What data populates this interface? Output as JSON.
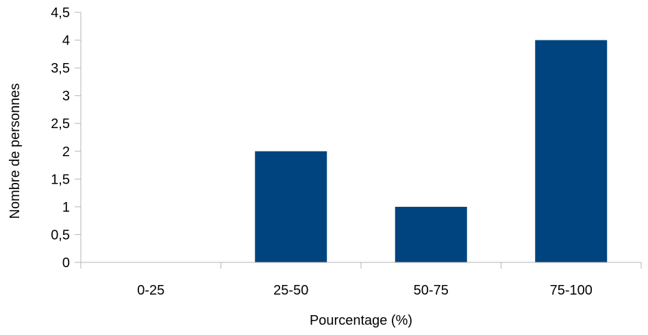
{
  "chart_data": {
    "type": "bar",
    "title": "",
    "xlabel": "Pourcentage (%)",
    "ylabel": "Nombre de personnes",
    "categories": [
      "0-25",
      "25-50",
      "50-75",
      "75-100"
    ],
    "values": [
      0,
      2,
      1,
      4
    ],
    "ylim": [
      0,
      4.5
    ],
    "yticks": [
      0,
      0.5,
      1,
      1.5,
      2,
      2.5,
      3,
      3.5,
      4,
      4.5
    ],
    "ytick_labels": [
      "0",
      "0,5",
      "1",
      "1,5",
      "2",
      "2,5",
      "3",
      "3,5",
      "4",
      "4,5"
    ],
    "bar_color": "#00447f",
    "axis_color": "#b3b3b3",
    "grid": false,
    "legend": "none"
  }
}
